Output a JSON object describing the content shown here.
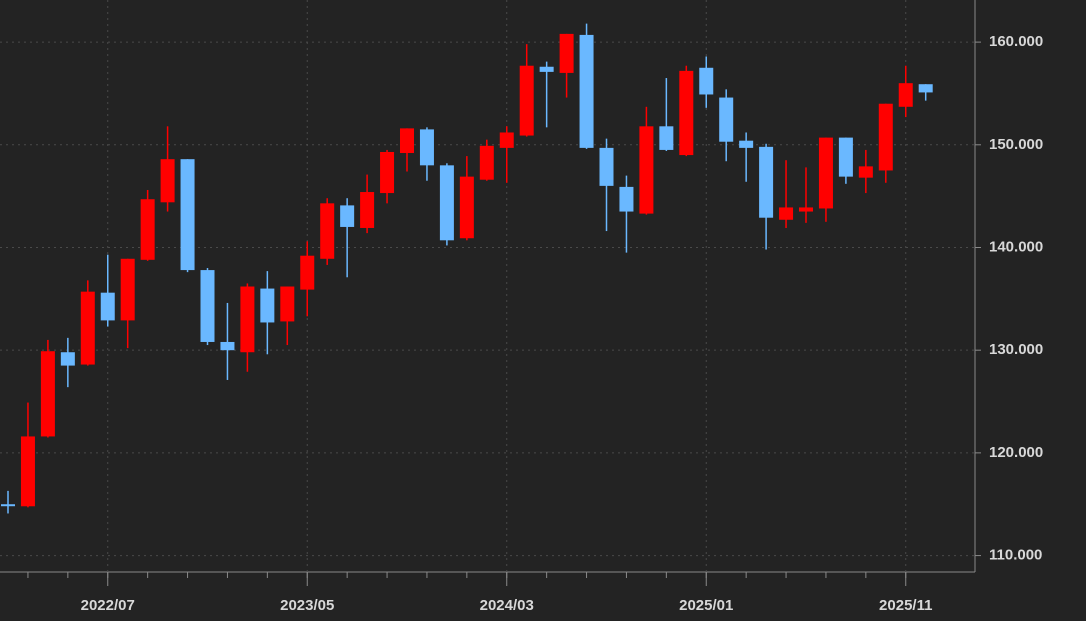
{
  "chart_data": {
    "type": "candlestick",
    "categories": [
      null,
      null,
      null,
      null,
      null,
      "2022/07",
      null,
      null,
      null,
      null,
      null,
      null,
      null,
      null,
      null,
      "2023/05",
      null,
      null,
      null,
      null,
      null,
      null,
      null,
      null,
      null,
      "2024/03",
      null,
      null,
      null,
      null,
      null,
      null,
      null,
      null,
      null,
      "2025/01",
      null,
      null,
      null,
      null,
      null,
      null,
      null,
      null,
      null,
      "2025/11",
      null
    ],
    "up_color": "#ff0000",
    "down_color": "#6ab8ff",
    "series": [
      {
        "open": [
          115.0,
          114.8,
          121.6,
          129.8,
          128.6,
          135.6,
          132.9,
          138.8,
          144.4,
          148.6,
          137.8,
          130.8,
          129.8,
          136.0,
          132.8,
          135.9,
          138.9,
          144.1,
          141.9,
          145.3,
          149.2,
          151.5,
          148.0,
          140.9,
          146.6,
          149.7,
          150.9,
          157.6,
          157.0,
          160.7,
          149.7,
          145.9,
          143.3,
          151.8,
          149.0,
          157.5,
          154.6,
          150.4,
          149.8,
          142.7,
          143.5,
          143.8,
          150.7,
          146.8,
          147.5,
          153.7,
          155.9
        ],
        "high": [
          116.3,
          124.9,
          131.0,
          131.2,
          136.8,
          139.3,
          138.9,
          145.6,
          151.8,
          148.6,
          138.0,
          134.6,
          136.5,
          137.7,
          136.2,
          140.6,
          144.8,
          144.8,
          147.1,
          149.5,
          151.6,
          151.7,
          148.2,
          148.9,
          150.5,
          151.8,
          159.8,
          158.1,
          160.8,
          161.8,
          150.6,
          147.0,
          153.7,
          156.5,
          157.7,
          158.6,
          155.4,
          151.2,
          150.1,
          148.5,
          147.8,
          150.7,
          150.7,
          149.5,
          154.0,
          157.7,
          155.9
        ],
        "low": [
          114.1,
          114.7,
          121.5,
          126.4,
          128.5,
          132.3,
          130.2,
          138.7,
          143.5,
          137.6,
          130.5,
          127.1,
          127.9,
          129.6,
          130.5,
          133.3,
          138.3,
          137.1,
          141.4,
          144.3,
          147.4,
          146.5,
          140.2,
          140.7,
          146.5,
          146.3,
          150.8,
          151.7,
          154.6,
          149.6,
          141.6,
          139.5,
          143.2,
          149.4,
          148.9,
          153.6,
          148.4,
          146.4,
          139.8,
          141.9,
          142.4,
          142.5,
          146.2,
          145.3,
          146.3,
          152.7,
          154.3
        ],
        "close": [
          114.9,
          121.6,
          129.9,
          128.5,
          135.7,
          132.9,
          138.9,
          144.7,
          148.6,
          137.8,
          130.8,
          130.0,
          136.2,
          132.7,
          136.2,
          139.2,
          144.3,
          142.0,
          145.4,
          149.3,
          151.6,
          148.0,
          140.7,
          146.9,
          149.9,
          151.2,
          157.7,
          157.1,
          160.8,
          149.7,
          146.0,
          143.5,
          151.8,
          149.5,
          157.2,
          154.9,
          150.3,
          149.7,
          142.9,
          143.9,
          143.9,
          150.7,
          146.9,
          147.9,
          154.0,
          156.0,
          155.1
        ]
      }
    ],
    "ylim": [
      108.4,
      164.1
    ],
    "yticks": [
      {
        "value": 110,
        "label": "110.000"
      },
      {
        "value": 120,
        "label": "120.000"
      },
      {
        "value": 130,
        "label": "130.000"
      },
      {
        "value": 140,
        "label": "140.000"
      },
      {
        "value": 150,
        "label": "150.000"
      },
      {
        "value": 160,
        "label": "160.000"
      }
    ],
    "grid": true
  }
}
